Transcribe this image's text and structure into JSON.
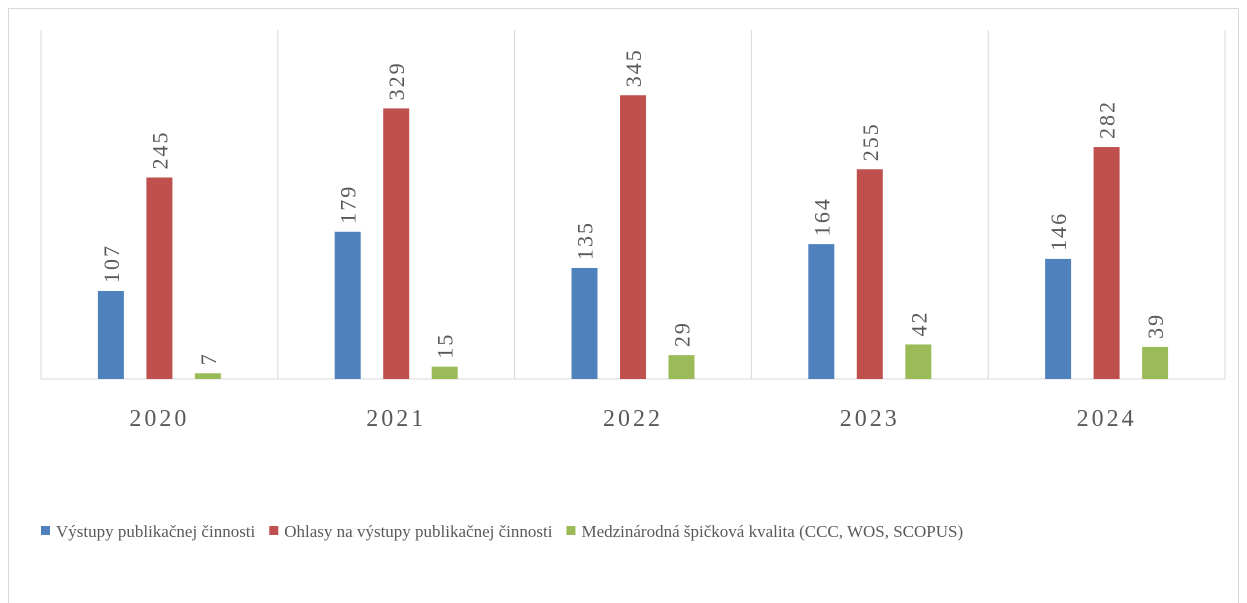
{
  "chart_data": {
    "type": "bar",
    "categories": [
      "2020",
      "2021",
      "2022",
      "2023",
      "2024"
    ],
    "series": [
      {
        "name": "Výstupy publikačnej činnosti",
        "color": "#4f81bd",
        "values": [
          107,
          179,
          135,
          164,
          146
        ]
      },
      {
        "name": "Ohlasy na výstupy publikačnej činnosti",
        "color": "#c0504d",
        "values": [
          245,
          329,
          345,
          255,
          282
        ]
      },
      {
        "name": "Medzinárodná špičková kvalita (CCC, WOS, SCOPUS)",
        "color": "#9bbb59",
        "values": [
          7,
          15,
          29,
          42,
          39
        ]
      }
    ],
    "ylim": [
      0,
      400
    ],
    "legend": "bottom"
  }
}
